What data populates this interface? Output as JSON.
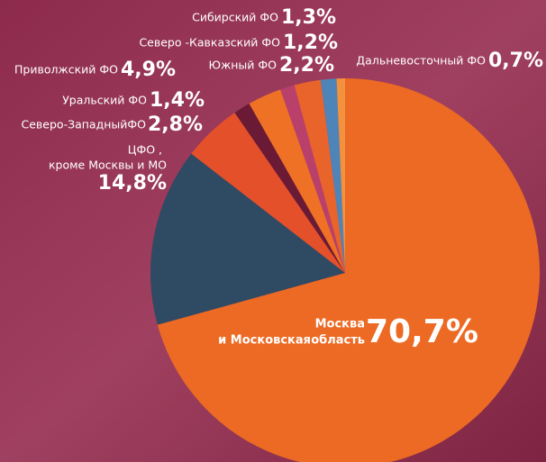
{
  "chart_data": {
    "type": "pie",
    "categories": [
      [
        "Москва",
        "и Московская",
        "область"
      ],
      [
        "ЦФО ,",
        "кроме Москвы и МО"
      ],
      [
        "Приволжский ФО"
      ],
      [
        "Уральский ФО"
      ],
      [
        "Северо-ЗападныйФО"
      ],
      [
        "Северо -Кавказский ФО"
      ],
      [
        "Южный ФО"
      ],
      [
        "Сибирский ФО"
      ],
      [
        "Дальневосточный ФО"
      ]
    ],
    "values": [
      70.7,
      14.8,
      4.9,
      1.4,
      2.8,
      1.2,
      2.2,
      1.3,
      0.7
    ],
    "value_labels": [
      "70,7%",
      "14,8%",
      "4,9%",
      "1,4%",
      "2,8%",
      "1,2%",
      "2,2%",
      "1,3%",
      "0,7%"
    ],
    "colors": [
      "#ec6a23",
      "#2f4a63",
      "#e4502a",
      "#6b1a35",
      "#ef7125",
      "#b8406b",
      "#e9642b",
      "#4f84b8",
      "#f2913e"
    ]
  }
}
